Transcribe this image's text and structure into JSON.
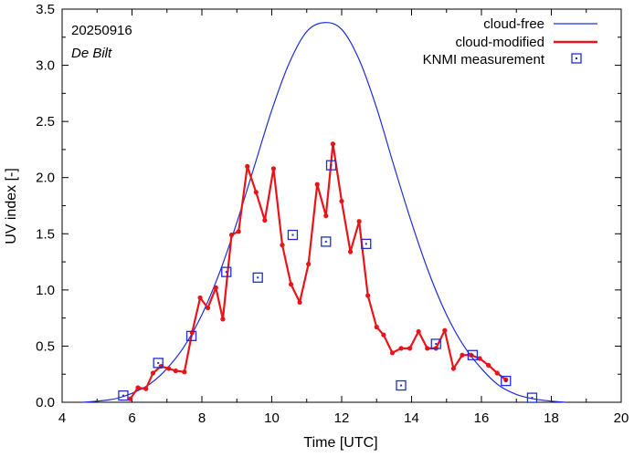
{
  "chart_data": {
    "type": "line",
    "title": "",
    "annotations": {
      "date": "20250916",
      "station": "De Bilt"
    },
    "xlabel": "Time  [UTC]",
    "ylabel": "UV index  [-]",
    "xlim": [
      4,
      20
    ],
    "ylim": [
      0,
      3.5
    ],
    "xticks": [
      4,
      6,
      8,
      10,
      12,
      14,
      16,
      18,
      20
    ],
    "yticks": [
      0.0,
      0.5,
      1.0,
      1.5,
      2.0,
      2.5,
      3.0,
      3.5
    ],
    "legend_position": "top-right",
    "series": [
      {
        "name": "cloud-free",
        "style": "line",
        "color": "#1e2dd6",
        "x": [
          4.6,
          5.0,
          5.5,
          6.0,
          6.5,
          7.0,
          7.5,
          8.0,
          8.5,
          9.0,
          9.5,
          10.0,
          10.5,
          11.0,
          11.5,
          12.0,
          12.5,
          13.0,
          13.5,
          14.0,
          14.5,
          15.0,
          15.5,
          16.0,
          16.5,
          17.0,
          17.5,
          18.0,
          18.4
        ],
        "y": [
          0.0,
          0.01,
          0.03,
          0.08,
          0.16,
          0.3,
          0.5,
          0.78,
          1.15,
          1.6,
          2.1,
          2.6,
          3.02,
          3.3,
          3.38,
          3.32,
          3.05,
          2.62,
          2.1,
          1.6,
          1.15,
          0.78,
          0.5,
          0.3,
          0.15,
          0.07,
          0.03,
          0.01,
          0.0
        ]
      },
      {
        "name": "cloud-modified",
        "style": "line-points",
        "color": "#e8141a",
        "x": [
          5.95,
          6.17,
          6.4,
          6.6,
          6.83,
          7.05,
          7.25,
          7.5,
          7.72,
          7.95,
          8.17,
          8.4,
          8.6,
          8.85,
          9.05,
          9.3,
          9.55,
          9.8,
          10.05,
          10.3,
          10.55,
          10.8,
          11.05,
          11.3,
          11.55,
          11.75,
          12.0,
          12.25,
          12.5,
          12.75,
          13.0,
          13.2,
          13.45,
          13.7,
          13.95,
          14.2,
          14.45,
          14.7,
          14.95,
          15.2,
          15.45,
          15.7,
          15.95,
          16.2,
          16.45,
          16.7
        ],
        "y": [
          0.03,
          0.13,
          0.12,
          0.26,
          0.32,
          0.3,
          0.28,
          0.27,
          0.62,
          0.93,
          0.84,
          1.02,
          0.74,
          1.49,
          1.52,
          2.1,
          1.87,
          1.62,
          2.08,
          1.4,
          1.05,
          0.89,
          1.23,
          1.94,
          1.66,
          2.3,
          1.79,
          1.34,
          1.61,
          0.95,
          0.67,
          0.6,
          0.44,
          0.48,
          0.48,
          0.63,
          0.48,
          0.48,
          0.64,
          0.3,
          0.42,
          0.42,
          0.39,
          0.33,
          0.26,
          0.2
        ]
      },
      {
        "name": "KNMI measurement",
        "style": "dotted-square",
        "color": "#1e2dd6",
        "x": [
          5.75,
          6.75,
          7.7,
          8.7,
          9.6,
          10.6,
          11.55,
          11.7,
          12.7,
          13.7,
          14.7,
          15.75,
          16.7,
          17.45
        ],
        "y": [
          0.06,
          0.35,
          0.59,
          1.16,
          1.11,
          1.49,
          1.43,
          2.11,
          1.41,
          0.15,
          0.52,
          0.42,
          0.19,
          0.04
        ]
      }
    ]
  }
}
